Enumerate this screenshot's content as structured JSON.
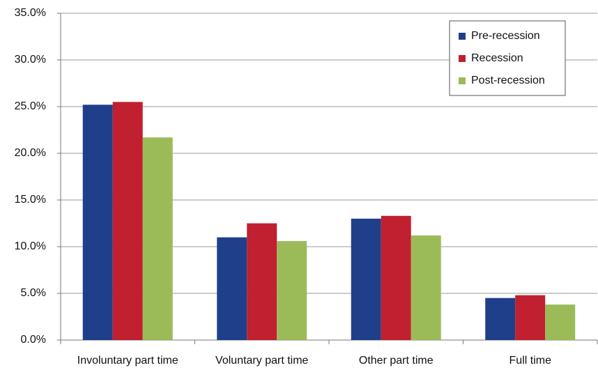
{
  "chart_data": {
    "type": "bar",
    "categories": [
      "Involuntary part time",
      "Voluntary part time",
      "Other part time",
      "Full time"
    ],
    "series": [
      {
        "name": "Pre-recession",
        "color": "#1f3f8a",
        "values": [
          25.2,
          11.0,
          13.0,
          4.5
        ]
      },
      {
        "name": "Recession",
        "color": "#c0202f",
        "values": [
          25.5,
          12.5,
          13.3,
          4.8
        ]
      },
      {
        "name": "Post-recession",
        "color": "#9bbb59",
        "values": [
          21.7,
          10.6,
          11.2,
          3.8
        ]
      }
    ],
    "ylim": [
      0,
      35
    ],
    "yticks": [
      {
        "value": 0,
        "label": "0.0%"
      },
      {
        "value": 5,
        "label": "5.0%"
      },
      {
        "value": 10,
        "label": "10.0%"
      },
      {
        "value": 15,
        "label": "15.0%"
      },
      {
        "value": 20,
        "label": "20.0%"
      },
      {
        "value": 25,
        "label": "25.0%"
      },
      {
        "value": 30,
        "label": "30.0%"
      },
      {
        "value": 35,
        "label": "35.0%"
      }
    ],
    "grid": true,
    "legend": "top-right"
  }
}
